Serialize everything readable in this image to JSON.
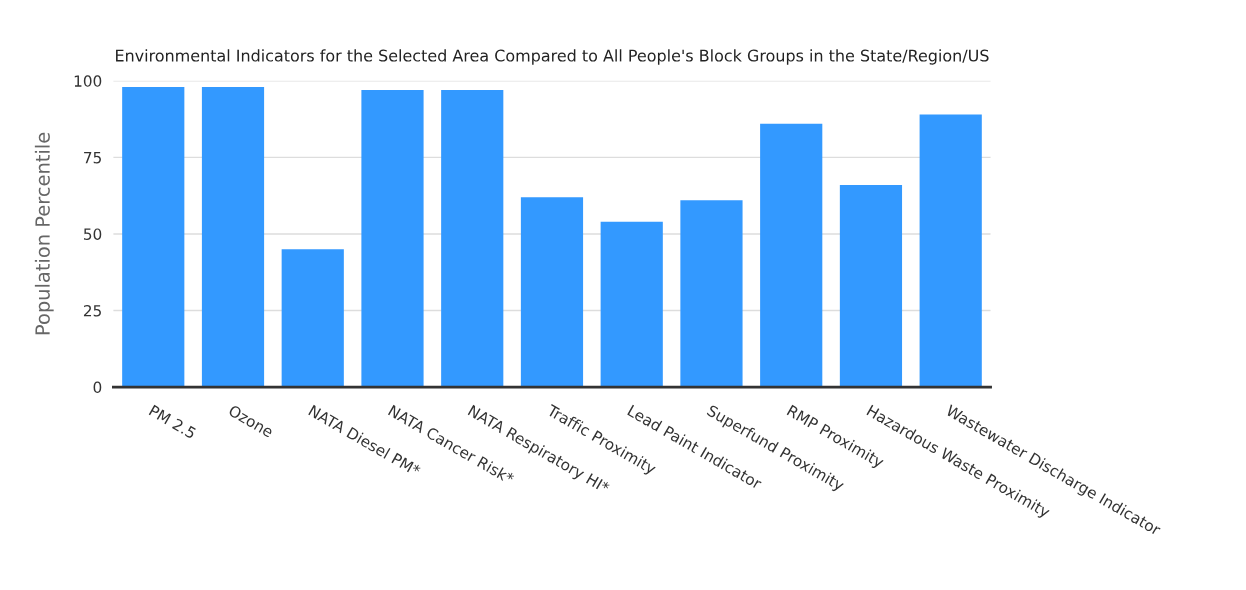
{
  "chart_data": {
    "type": "bar",
    "title": "Environmental Indicators for the Selected Area Compared to All People's Block Groups in the State/Region/US",
    "ylabel": "Population Percentile",
    "categories": [
      "PM 2.5",
      "Ozone",
      "NATA Diesel PM*",
      "NATA Cancer Risk*",
      "NATA Respiratory HI*",
      "Traffic Proximity",
      "Lead Paint Indicator",
      "Superfund Proximity",
      "RMP Proximity",
      "Hazardous Waste Proximity",
      "Wastewater Discharge Indicator"
    ],
    "values": [
      98,
      98,
      45,
      97,
      97,
      62,
      54,
      61,
      86,
      66,
      89
    ],
    "color": "#3399ff",
    "ylim": [
      0,
      100
    ],
    "yticks": [
      0,
      25,
      50,
      75,
      100
    ],
    "grid": "y",
    "legend": false
  }
}
